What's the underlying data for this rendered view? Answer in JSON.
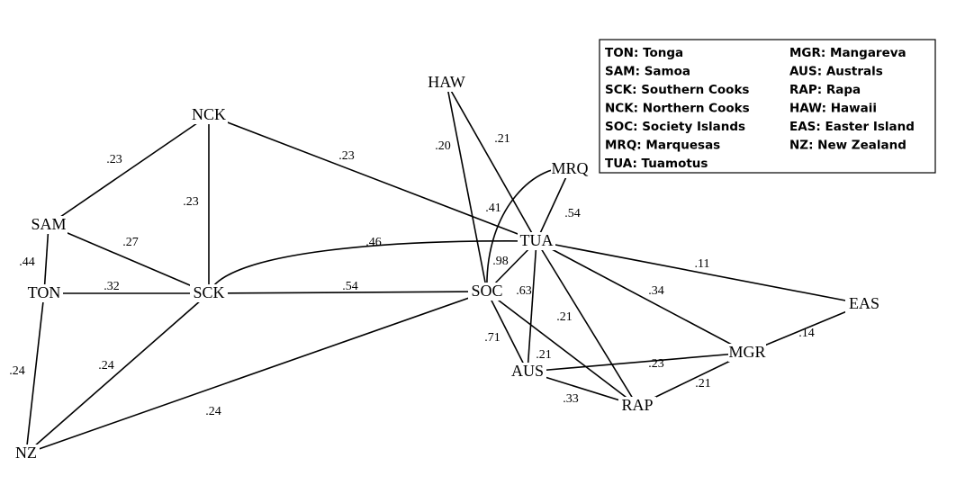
{
  "nodes": [
    {
      "id": "HAW",
      "label": "HAW"
    },
    {
      "id": "NCK",
      "label": "NCK"
    },
    {
      "id": "SAM",
      "label": "SAM"
    },
    {
      "id": "TON",
      "label": "TON"
    },
    {
      "id": "SCK",
      "label": "SCK"
    },
    {
      "id": "NZ",
      "label": "NZ"
    },
    {
      "id": "SOC",
      "label": "SOC"
    },
    {
      "id": "TUA",
      "label": "TUA"
    },
    {
      "id": "MRQ",
      "label": "MRQ"
    },
    {
      "id": "AUS",
      "label": "AUS"
    },
    {
      "id": "RAP",
      "label": "RAP"
    },
    {
      "id": "MGR",
      "label": "MGR"
    },
    {
      "id": "EAS",
      "label": "EAS"
    }
  ],
  "edges": [
    {
      "from": "SAM",
      "to": "NCK",
      "label": ".23"
    },
    {
      "from": "NCK",
      "to": "SCK",
      "label": ".23"
    },
    {
      "from": "NCK",
      "to": "TUA",
      "label": ".23"
    },
    {
      "from": "SAM",
      "to": "SCK",
      "label": ".27"
    },
    {
      "from": "SAM",
      "to": "TON",
      "label": ".44"
    },
    {
      "from": "TON",
      "to": "SCK",
      "label": ".32"
    },
    {
      "from": "TON",
      "to": "NZ",
      "label": ".24"
    },
    {
      "from": "SCK",
      "to": "NZ",
      "label": ".24"
    },
    {
      "from": "NZ",
      "to": "SOC",
      "label": ".24"
    },
    {
      "from": "SCK",
      "to": "SOC",
      "label": ".54"
    },
    {
      "from": "SCK",
      "to": "TUA",
      "label": ".46",
      "curve": "scktua"
    },
    {
      "from": "HAW",
      "to": "SOC",
      "label": ".20"
    },
    {
      "from": "HAW",
      "to": "TUA",
      "label": ".21"
    },
    {
      "from": "MRQ",
      "to": "TUA",
      "label": ".54"
    },
    {
      "from": "MRQ",
      "to": "SOC",
      "label": ".41",
      "curve": "mrqsoc"
    },
    {
      "from": "SOC",
      "to": "TUA",
      "label": ".98"
    },
    {
      "from": "TUA",
      "to": "EAS",
      "label": ".11"
    },
    {
      "from": "TUA",
      "to": "MGR",
      "label": ".34"
    },
    {
      "from": "TUA",
      "to": "AUS",
      "label": ".63"
    },
    {
      "from": "TUA",
      "to": "RAP",
      "label": ".21"
    },
    {
      "from": "SOC",
      "to": "AUS",
      "label": ".71"
    },
    {
      "from": "SOC",
      "to": "RAP",
      "label": ".21"
    },
    {
      "from": "AUS",
      "to": "MGR",
      "label": ".23"
    },
    {
      "from": "AUS",
      "to": "RAP",
      "label": ".33"
    },
    {
      "from": "RAP",
      "to": "MGR",
      "label": ".21"
    },
    {
      "from": "MGR",
      "to": "EAS",
      "label": ".14"
    }
  ],
  "legend": {
    "left": [
      "TON: Tonga",
      "SAM: Samoa",
      "SCK: Southern Cooks",
      "NCK: Northern Cooks",
      "SOC: Society Islands",
      "MRQ: Marquesas",
      "TUA: Tuamotus"
    ],
    "right": [
      "MGR: Mangareva",
      "AUS: Australs",
      "RAP: Rapa",
      "HAW: Hawaii",
      "EAS: Easter Island",
      "NZ: New Zealand"
    ]
  }
}
